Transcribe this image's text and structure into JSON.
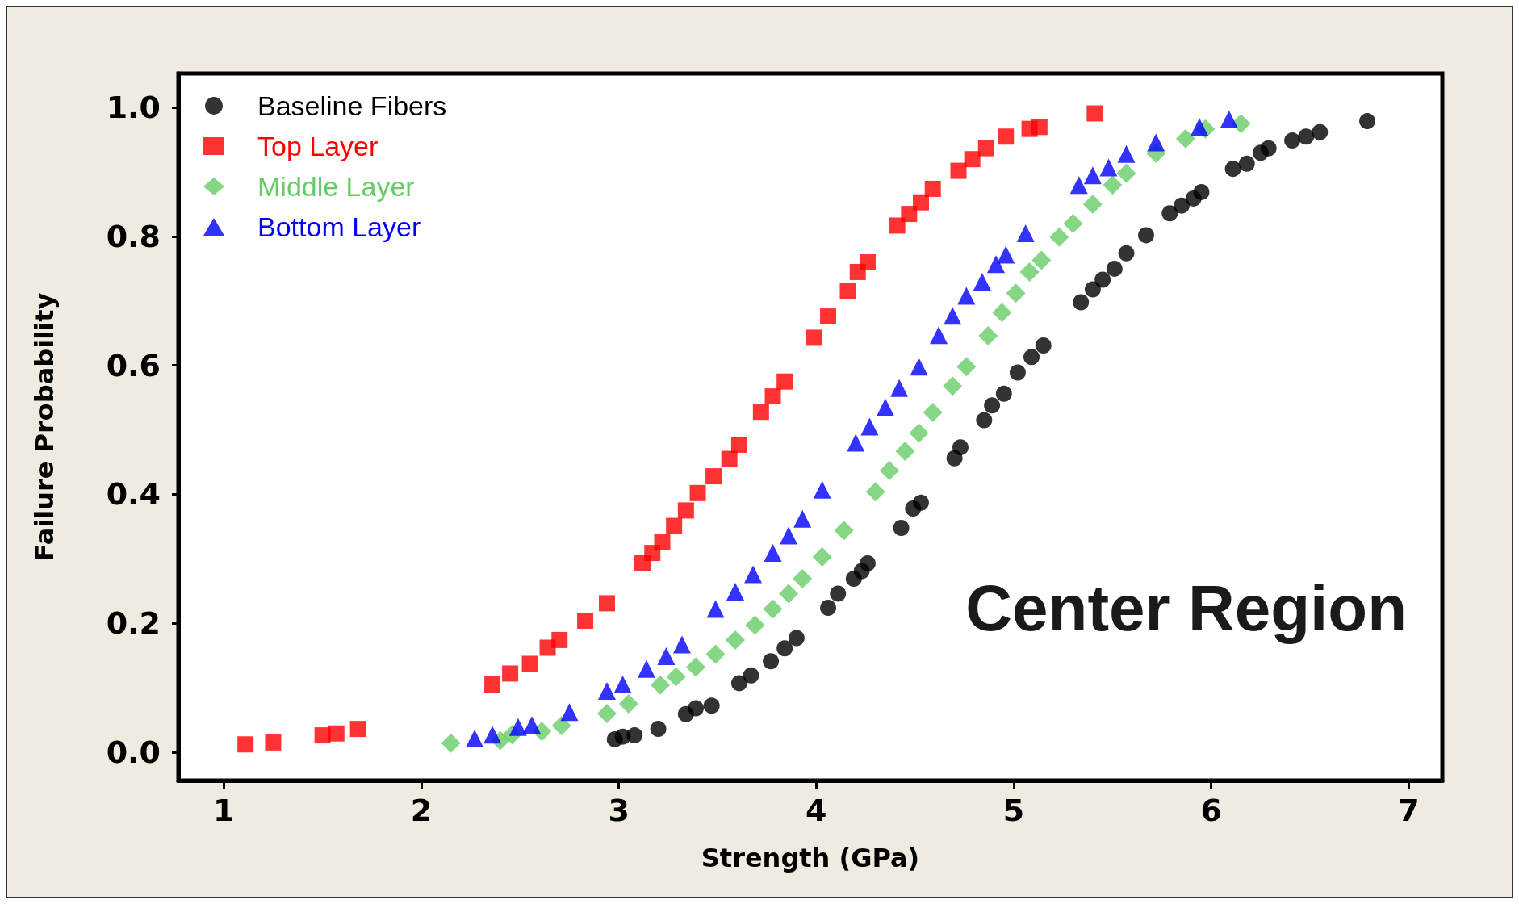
{
  "chart_data": {
    "type": "scatter",
    "xlabel": "Strength (GPa)",
    "ylabel": "Failure Probability",
    "xlim": [
      0.77,
      7.17
    ],
    "ylim": [
      -0.044,
      1.053
    ],
    "xticks": [
      1,
      2,
      3,
      4,
      5,
      6,
      7
    ],
    "yticks": [
      {
        "value": 0,
        "label": "0.0"
      },
      {
        "value": 0.2,
        "label": "0.2"
      },
      {
        "value": 0.4,
        "label": "0.4"
      },
      {
        "value": 0.6,
        "label": "0.6"
      },
      {
        "value": 0.8,
        "label": "0.8"
      },
      {
        "value": 1,
        "label": "1.0"
      }
    ],
    "grid": false,
    "legend": "top left",
    "annotations": [
      "Center Region"
    ],
    "series": [
      {
        "name": "Baseline Fibers",
        "color": "#000000",
        "marker": "circle",
        "x": [
          2.98,
          3.02,
          3.08,
          3.2,
          3.34,
          3.39,
          3.47,
          3.61,
          3.67,
          3.77,
          3.84,
          3.9,
          4.06,
          4.11,
          4.19,
          4.23,
          4.26,
          4.43,
          4.49,
          4.53,
          4.7,
          4.73,
          4.85,
          4.89,
          4.95,
          5.02,
          5.09,
          5.15,
          5.34,
          5.4,
          5.45,
          5.51,
          5.57,
          5.67,
          5.79,
          5.85,
          5.91,
          5.95,
          6.11,
          6.18,
          6.25,
          6.29,
          6.41,
          6.48,
          6.55,
          6.79
        ],
        "values": [
          0.02,
          0.024,
          0.026,
          0.036,
          0.059,
          0.068,
          0.072,
          0.107,
          0.119,
          0.141,
          0.161,
          0.177,
          0.224,
          0.246,
          0.269,
          0.281,
          0.293,
          0.348,
          0.378,
          0.387,
          0.456,
          0.473,
          0.515,
          0.538,
          0.556,
          0.589,
          0.613,
          0.631,
          0.698,
          0.718,
          0.733,
          0.75,
          0.774,
          0.802,
          0.836,
          0.848,
          0.859,
          0.869,
          0.905,
          0.913,
          0.93,
          0.937,
          0.949,
          0.955,
          0.962,
          0.979
        ]
      },
      {
        "name": "Top Layer",
        "color": "#ff0000",
        "marker": "square",
        "x": [
          1.11,
          1.25,
          1.5,
          1.57,
          1.68,
          2.36,
          2.45,
          2.55,
          2.64,
          2.7,
          2.83,
          2.94,
          3.12,
          3.17,
          3.22,
          3.28,
          3.34,
          3.4,
          3.48,
          3.56,
          3.61,
          3.72,
          3.78,
          3.84,
          3.99,
          4.06,
          4.16,
          4.21,
          4.26,
          4.41,
          4.47,
          4.53,
          4.59,
          4.72,
          4.79,
          4.86,
          4.96,
          5.08,
          5.13,
          5.41
        ],
        "values": [
          0.012,
          0.015,
          0.026,
          0.029,
          0.036,
          0.105,
          0.122,
          0.137,
          0.162,
          0.174,
          0.204,
          0.231,
          0.293,
          0.309,
          0.326,
          0.351,
          0.375,
          0.402,
          0.428,
          0.455,
          0.477,
          0.528,
          0.552,
          0.575,
          0.643,
          0.676,
          0.715,
          0.745,
          0.76,
          0.817,
          0.835,
          0.853,
          0.874,
          0.902,
          0.92,
          0.937,
          0.955,
          0.967,
          0.97,
          0.991
        ]
      },
      {
        "name": "Middle Layer",
        "color": "#66cc66",
        "marker": "diamond",
        "x": [
          2.15,
          2.4,
          2.46,
          2.61,
          2.71,
          2.94,
          3.05,
          3.21,
          3.29,
          3.39,
          3.49,
          3.59,
          3.69,
          3.78,
          3.86,
          3.93,
          4.03,
          4.14,
          4.3,
          4.37,
          4.45,
          4.52,
          4.59,
          4.69,
          4.76,
          4.87,
          4.94,
          5.01,
          5.08,
          5.14,
          5.23,
          5.3,
          5.4,
          5.5,
          5.57,
          5.72,
          5.87,
          5.97,
          6.15
        ],
        "values": [
          0.014,
          0.018,
          0.027,
          0.032,
          0.041,
          0.06,
          0.075,
          0.104,
          0.117,
          0.132,
          0.152,
          0.174,
          0.197,
          0.222,
          0.246,
          0.269,
          0.303,
          0.344,
          0.404,
          0.437,
          0.467,
          0.495,
          0.527,
          0.568,
          0.598,
          0.646,
          0.682,
          0.712,
          0.745,
          0.763,
          0.799,
          0.82,
          0.85,
          0.88,
          0.898,
          0.929,
          0.952,
          0.967,
          0.975
        ]
      },
      {
        "name": "Bottom Layer",
        "color": "#0000ff",
        "marker": "triangle",
        "x": [
          2.27,
          2.36,
          2.49,
          2.56,
          2.75,
          2.94,
          3.02,
          3.14,
          3.24,
          3.32,
          3.49,
          3.59,
          3.68,
          3.78,
          3.86,
          3.93,
          4.03,
          4.2,
          4.27,
          4.35,
          4.42,
          4.52,
          4.62,
          4.69,
          4.76,
          4.84,
          4.91,
          4.96,
          5.06,
          5.33,
          5.4,
          5.48,
          5.57,
          5.72,
          5.94,
          6.09
        ],
        "values": [
          0.021,
          0.027,
          0.039,
          0.042,
          0.062,
          0.095,
          0.105,
          0.129,
          0.149,
          0.167,
          0.222,
          0.249,
          0.276,
          0.309,
          0.336,
          0.362,
          0.407,
          0.48,
          0.505,
          0.535,
          0.565,
          0.598,
          0.647,
          0.677,
          0.708,
          0.73,
          0.757,
          0.772,
          0.805,
          0.88,
          0.895,
          0.907,
          0.928,
          0.946,
          0.97,
          0.982
        ]
      }
    ]
  }
}
